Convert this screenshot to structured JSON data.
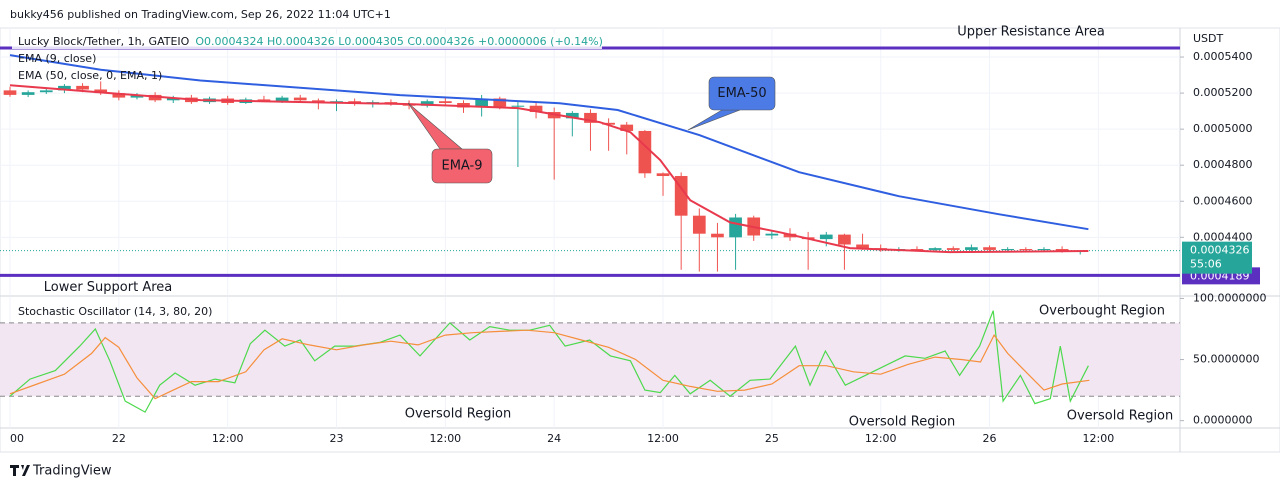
{
  "header": {
    "publisher": "bukky456 published on TradingView.com, Sep 26, 2022 11:04 UTC+1",
    "brand": "TradingView"
  },
  "chart_data": [
    {
      "type": "candlestick",
      "title": "Lucky Block/Tether, 1h, GATEIO",
      "ohlc_label": "O0.0004324  H0.0004326  L0.0004305  C0.0004326  +0.0000006 (+0.14%)",
      "currency": "USDT",
      "up_color": "#26a69a",
      "down_color": "#ef5350",
      "grid": true,
      "x": [
        0,
        2,
        4,
        6,
        8,
        10,
        12,
        14,
        16,
        18,
        20,
        22,
        24,
        26,
        28,
        30,
        32,
        34,
        36,
        38,
        40,
        42,
        44,
        46,
        48,
        50,
        52,
        54,
        56,
        58,
        60,
        62,
        64,
        66,
        68,
        70,
        72,
        74,
        76,
        78,
        80,
        82,
        84,
        86,
        88,
        90,
        92,
        94,
        96,
        98,
        100,
        102,
        104,
        106,
        108,
        110,
        112,
        114,
        116,
        118
      ],
      "open": [
        0.0005215,
        0.000519,
        0.0005205,
        0.0005215,
        0.000524,
        0.000522,
        0.00052,
        0.0005175,
        0.000519,
        0.000516,
        0.0005175,
        0.000515,
        0.000517,
        0.0005145,
        0.0005165,
        0.0005155,
        0.0005175,
        0.000516,
        0.0005145,
        0.0005155,
        0.000514,
        0.000515,
        0.000514,
        0.000513,
        0.0005155,
        0.0005145,
        0.000512,
        0.000517,
        0.0005125,
        0.000513,
        0.0005095,
        0.000506,
        0.000509,
        0.0005035,
        0.0005025,
        0.000499,
        0.0004755,
        0.000474,
        0.000452,
        0.000442,
        0.00044,
        0.000451,
        0.000441,
        0.000442,
        0.00044,
        0.000439,
        0.0004415,
        0.000436,
        0.000434,
        0.000433,
        0.0004335,
        0.000433,
        0.000434,
        0.000433,
        0.0004345,
        0.000433,
        0.0004335,
        0.000433,
        0.0004335,
        0.0004324
      ],
      "high": [
        0.0005235,
        0.0005215,
        0.000523,
        0.000525,
        0.0005255,
        0.0005265,
        0.0005215,
        0.00052,
        0.0005205,
        0.0005185,
        0.000519,
        0.000518,
        0.0005185,
        0.0005175,
        0.0005185,
        0.0005185,
        0.000519,
        0.000517,
        0.0005165,
        0.000517,
        0.000516,
        0.0005165,
        0.000516,
        0.0005165,
        0.000518,
        0.000516,
        0.000519,
        0.000518,
        0.000515,
        0.0005145,
        0.000512,
        0.00051,
        0.000511,
        0.000506,
        0.000504,
        0.0004995,
        0.000476,
        0.000476,
        0.000456,
        0.000448,
        0.000453,
        0.000452,
        0.000444,
        0.000445,
        0.000443,
        0.000443,
        0.000442,
        0.000442,
        0.000436,
        0.0004345,
        0.000435,
        0.0004345,
        0.000435,
        0.000436,
        0.0004355,
        0.0004345,
        0.0004345,
        0.0004345,
        0.000435,
        0.0004326
      ],
      "low": [
        0.000518,
        0.0005178,
        0.0005195,
        0.00052,
        0.0005205,
        0.000519,
        0.000516,
        0.0005165,
        0.000515,
        0.0005145,
        0.000514,
        0.000514,
        0.0005135,
        0.000514,
        0.000515,
        0.0005145,
        0.000515,
        0.000511,
        0.00051,
        0.000513,
        0.000512,
        0.000513,
        0.000511,
        0.000512,
        0.0005135,
        0.000509,
        0.000507,
        0.000511,
        0.000479,
        0.000506,
        0.000472,
        0.000496,
        0.000488,
        0.000488,
        0.000486,
        0.000473,
        0.000463,
        0.000422,
        0.000421,
        0.000421,
        0.000422,
        0.000438,
        0.000439,
        0.000438,
        0.000422,
        0.000435,
        0.000422,
        0.000433,
        0.000432,
        0.000432,
        0.0004325,
        0.000432,
        0.0004325,
        0.0004325,
        0.000432,
        0.000432,
        0.0004325,
        0.000432,
        0.0004315,
        0.0004305
      ],
      "close": [
        0.000519,
        0.0005205,
        0.0005215,
        0.000524,
        0.000522,
        0.00052,
        0.0005175,
        0.000519,
        0.000516,
        0.0005175,
        0.000515,
        0.000517,
        0.0005145,
        0.0005165,
        0.0005155,
        0.0005175,
        0.000516,
        0.0005145,
        0.0005155,
        0.000514,
        0.000515,
        0.000514,
        0.000513,
        0.0005155,
        0.0005145,
        0.000512,
        0.000517,
        0.0005125,
        0.000513,
        0.0005095,
        0.000506,
        0.000509,
        0.0005035,
        0.0005025,
        0.000499,
        0.0004755,
        0.000474,
        0.000452,
        0.000442,
        0.00044,
        0.000451,
        0.000441,
        0.000442,
        0.00044,
        0.000439,
        0.0004415,
        0.000436,
        0.000434,
        0.000433,
        0.0004335,
        0.000433,
        0.000434,
        0.000433,
        0.0004345,
        0.000433,
        0.0004335,
        0.000433,
        0.0004335,
        0.0004324,
        0.0004326
      ],
      "xlim": [
        0,
        129
      ],
      "xticks": [
        {
          "value": 0,
          "label": "00"
        },
        {
          "value": 12,
          "label": "22"
        },
        {
          "value": 24,
          "label": "12:00"
        },
        {
          "value": 36,
          "label": "23"
        },
        {
          "value": 48,
          "label": "12:00"
        },
        {
          "value": 60,
          "label": "24"
        },
        {
          "value": 72,
          "label": "12:00"
        },
        {
          "value": 84,
          "label": "25"
        },
        {
          "value": 96,
          "label": "12:00"
        },
        {
          "value": 108,
          "label": "26"
        },
        {
          "value": 120,
          "label": "12:00"
        }
      ],
      "ylim": [
        0.000408,
        0.000555
      ],
      "yticks": [
        {
          "value": 0.00054,
          "label": "0.0005400"
        },
        {
          "value": 0.00052,
          "label": "0.0005200"
        },
        {
          "value": 0.0005,
          "label": "0.0005000"
        },
        {
          "value": 0.00048,
          "label": "0.0004800"
        },
        {
          "value": 0.00046,
          "label": "0.0004600"
        },
        {
          "value": 0.00044,
          "label": "0.0004400"
        }
      ],
      "series": [
        {
          "name": "EMA (9, close)",
          "color": "#e8394d",
          "x": [
            0,
            11,
            21,
            44,
            56,
            65,
            68.4,
            71.7,
            75,
            79.4,
            84.9,
            92.6,
            103.6,
            118.9
          ],
          "values": [
            0.0005244,
            0.00052,
            0.0005161,
            0.0005139,
            0.0005117,
            0.0005039,
            0.0004983,
            0.0004828,
            0.0004606,
            0.0004483,
            0.0004428,
            0.000434,
            0.0004318,
            0.0004324
          ]
        },
        {
          "name": "EMA (50, close, 0, EMA, 1)",
          "color": "#2f5fe0",
          "x": [
            0,
            10,
            21,
            43,
            60.6,
            67,
            76,
            87,
            98,
            109,
            118.9
          ],
          "values": [
            0.0005411,
            0.000533,
            0.000527,
            0.0005189,
            0.0005144,
            0.0005106,
            0.0004967,
            0.0004761,
            0.0004628,
            0.0004528,
            0.0004445
          ]
        }
      ],
      "levels": [
        {
          "label": "Upper Resistance Area",
          "value": 0.000545,
          "color": "#5b2fc0"
        },
        {
          "label": "Lower Support Area",
          "value": 0.0004189,
          "value_label": "0.0004189",
          "color": "#5b2fc0"
        }
      ],
      "last_price": {
        "value": 0.0004326,
        "label": "0.0004326",
        "countdown": "55:06",
        "color": "#26a69a"
      },
      "annotations": [
        {
          "text": "EMA-50",
          "color": "#4c7be6"
        },
        {
          "text": "EMA-9",
          "color": "#f2636f"
        }
      ]
    },
    {
      "type": "line",
      "title": "Stochastic Oscillator (14, 3, 80, 20)",
      "xlim": [
        0,
        129
      ],
      "ylim": [
        -6,
        102
      ],
      "yticks": [
        {
          "value": 100,
          "label": "100.0000000"
        },
        {
          "value": 50,
          "label": "50.0000000"
        },
        {
          "value": 0,
          "label": "0.0000000"
        }
      ],
      "bands": [
        80,
        20
      ],
      "band_color": "#f3e6f3",
      "series": [
        {
          "color": "#4cd94c",
          "x": [
            0,
            2.2,
            5,
            7.7,
            9.4,
            11,
            12.7,
            14.9,
            16.5,
            18.2,
            20.4,
            22.6,
            24.8,
            26.5,
            28.1,
            30.3,
            32,
            33.6,
            35.8,
            38,
            40.8,
            43,
            45.2,
            48.5,
            50.7,
            52.9,
            55.1,
            57.3,
            59.5,
            61.2,
            63.9,
            66.2,
            68.4,
            70,
            71.7,
            73.3,
            75,
            77.2,
            79.4,
            81.6,
            83.8,
            86.6,
            88.2,
            89.9,
            92.1,
            94.3,
            96.5,
            98.7,
            100.9,
            103.1,
            104.7,
            106.9,
            108.4,
            109.5,
            111.4,
            113,
            114.7,
            115.8,
            116.9,
            118.9
          ],
          "values": [
            20,
            34,
            41,
            61,
            75,
            49,
            16,
            7,
            29,
            39,
            29,
            34,
            31,
            63,
            74,
            61,
            66,
            49,
            61,
            61,
            64,
            70,
            53,
            80,
            66,
            77,
            74,
            74,
            78,
            61,
            66,
            53,
            49,
            25,
            23,
            37,
            22,
            33,
            20,
            33,
            34,
            61,
            29,
            57,
            29,
            37,
            45,
            53,
            51,
            57,
            37,
            61,
            90,
            16,
            37,
            14,
            18,
            61,
            16,
            45
          ]
        },
        {
          "color": "#f58f3b",
          "x": [
            0,
            3,
            6,
            9,
            10.5,
            12,
            14,
            16,
            18,
            20,
            23,
            26,
            28,
            30,
            33,
            36,
            39,
            42,
            45,
            48,
            51,
            54,
            57,
            60,
            63,
            66,
            69,
            72,
            75,
            78,
            81,
            84,
            87,
            90,
            93,
            96,
            99,
            102,
            105,
            107,
            108.5,
            110,
            112,
            114,
            116,
            119
          ],
          "values": [
            22,
            30,
            38,
            55,
            68,
            60,
            35,
            18,
            25,
            32,
            32,
            40,
            58,
            67,
            62,
            58,
            62,
            65,
            62,
            70,
            72,
            73,
            74,
            72,
            66,
            60,
            50,
            33,
            28,
            24,
            25,
            30,
            45,
            45,
            40,
            38,
            46,
            52,
            50,
            48,
            70,
            55,
            40,
            25,
            30,
            33
          ]
        }
      ],
      "annotations": [
        "Overbought Region",
        "Oversold Region",
        "Oversold Region",
        "Oversold Region"
      ]
    }
  ]
}
